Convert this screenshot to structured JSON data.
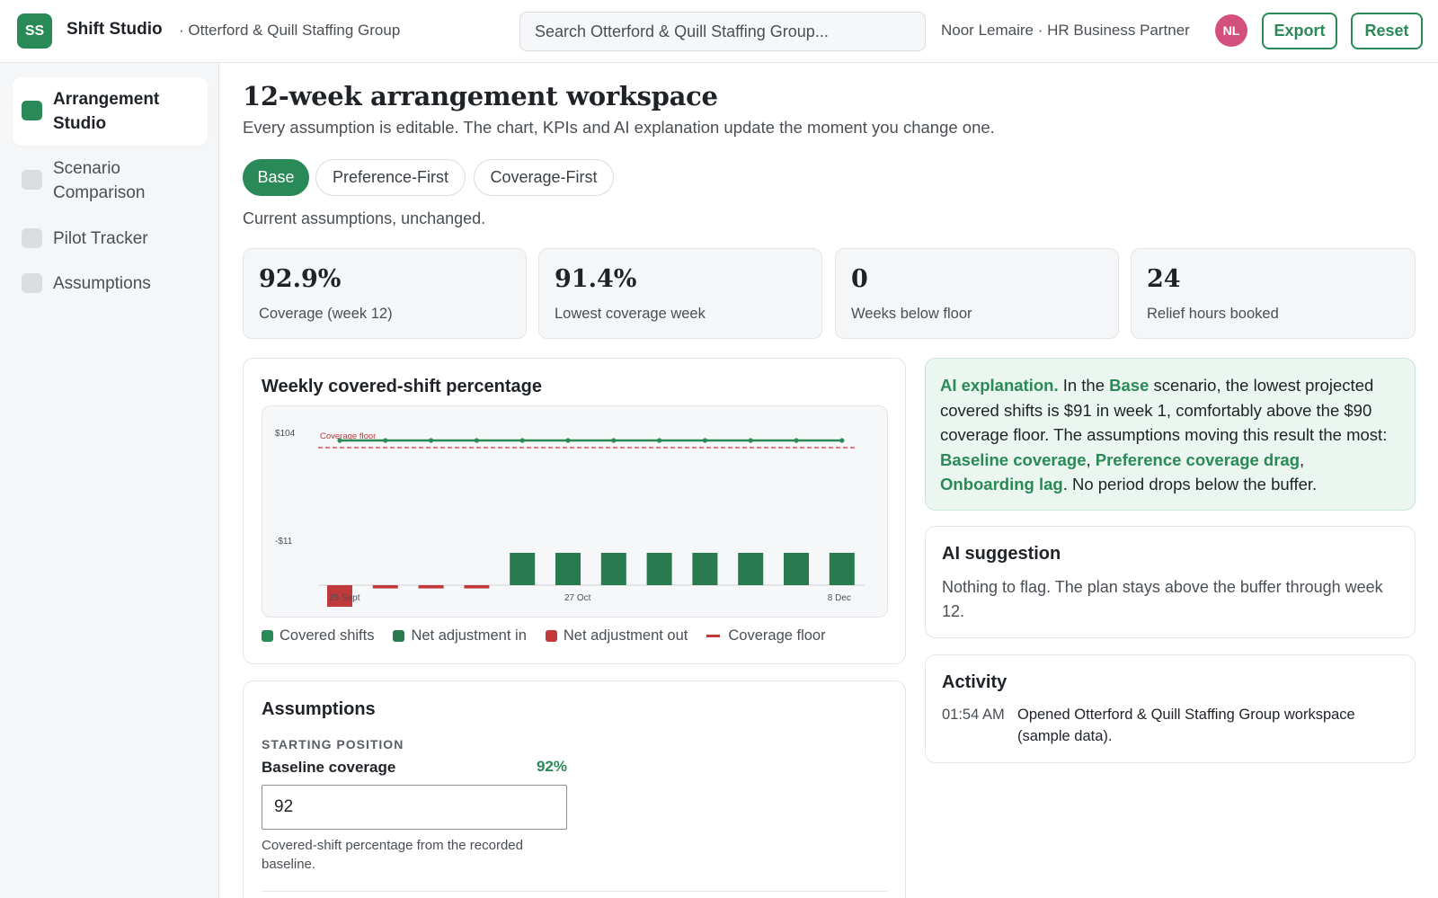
{
  "app": {
    "logo_initials": "SS",
    "title": "Shift Studio",
    "org": "· Otterford & Quill Staffing Group"
  },
  "search": {
    "placeholder": "Search Otterford & Quill Staffing Group..."
  },
  "user": {
    "label": "Noor Lemaire · HR Business Partner",
    "initials": "NL",
    "avatar_color": "#d3507e"
  },
  "header_actions": {
    "export": "Export",
    "reset": "Reset"
  },
  "sidebar": {
    "items": [
      {
        "label": "Arrangement Studio",
        "active": true
      },
      {
        "label": "Scenario Comparison",
        "active": false
      },
      {
        "label": "Pilot Tracker",
        "active": false
      },
      {
        "label": "Assumptions",
        "active": false
      }
    ]
  },
  "page": {
    "title": "12-week arrangement workspace",
    "subtitle": "Every assumption is editable. The chart, KPIs and AI explanation update the moment you change one."
  },
  "scenarios": {
    "tabs": [
      {
        "label": "Base",
        "active": true
      },
      {
        "label": "Preference-First",
        "active": false
      },
      {
        "label": "Coverage-First",
        "active": false
      }
    ],
    "note": "Current assumptions, unchanged."
  },
  "kpis": [
    {
      "value": "92.9%",
      "label": "Coverage (week 12)"
    },
    {
      "value": "91.4%",
      "label": "Lowest coverage week"
    },
    {
      "value": "0",
      "label": "Weeks below floor"
    },
    {
      "value": "24",
      "label": "Relief hours booked"
    }
  ],
  "chart_card": {
    "title": "Weekly covered-shift percentage"
  },
  "chart_data": {
    "type": "bar",
    "title": "Weekly covered-shift percentage",
    "y_tick_labels": [
      "$104",
      "-$11"
    ],
    "x_tick_labels": [
      "29 Sept",
      "27 Oct",
      "8 Dec"
    ],
    "floor_label": "Coverage floor",
    "weeks": [
      1,
      2,
      3,
      4,
      5,
      6,
      7,
      8,
      9,
      10,
      11,
      12
    ],
    "covered_shifts": [
      91.4,
      91.8,
      91.8,
      91.8,
      92.0,
      92.1,
      92.2,
      92.3,
      92.4,
      92.5,
      92.6,
      92.9
    ],
    "net_adjustment": [
      -2.0,
      -0.3,
      -0.3,
      -0.3,
      3.0,
      3.0,
      3.0,
      3.0,
      3.0,
      3.0,
      3.0,
      3.0
    ],
    "coverage_floor": 90,
    "series": [
      {
        "name": "Covered shifts",
        "color": "#2a8a57"
      },
      {
        "name": "Net adjustment in",
        "color": "#2a7a4f"
      },
      {
        "name": "Net adjustment out",
        "color": "#c0393b"
      },
      {
        "name": "Coverage floor",
        "color": "#c0393b"
      }
    ]
  },
  "ai_explanation": {
    "heading": "AI explanation.",
    "t1": " In the ",
    "scenario": "Base",
    "t2": " scenario, the lowest projected covered shifts is $91 in week 1, comfortably above the $90 coverage floor. The assumptions moving this result the most: ",
    "d1": "Baseline coverage",
    "sep1": ", ",
    "d2": "Preference coverage drag",
    "sep2": ", ",
    "d3": "Onboarding lag",
    "t3": ". No period drops below the buffer."
  },
  "ai_suggestion": {
    "title": "AI suggestion",
    "body": "Nothing to flag. The plan stays above the buffer through week 12."
  },
  "activity": {
    "title": "Activity",
    "entries": [
      {
        "time": "01:54 AM",
        "text": "Opened Otterford & Quill Staffing Group workspace (sample data)."
      }
    ]
  },
  "assumptions": {
    "title": "Assumptions",
    "section": "STARTING POSITION",
    "fields": [
      {
        "label": "Baseline coverage",
        "display": "92%",
        "value": "92",
        "help": "Covered-shift percentage from the recorded baseline."
      }
    ]
  }
}
